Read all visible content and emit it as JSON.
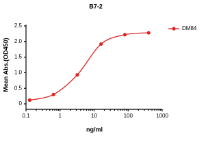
{
  "chart_data": {
    "type": "line",
    "title": "B7-2",
    "x_label": "ng/ml",
    "y_label": "Mean Abs.(OD450)",
    "x_scale": "log",
    "xlim": [
      0.1,
      1000
    ],
    "xticks": [
      0.1,
      1,
      10,
      100,
      1000
    ],
    "ylim": [
      0,
      2.5
    ],
    "yticks": [
      0,
      0.5,
      {
        "value": 1,
        "label": "1.0"
      },
      1.5,
      {
        "value": 2,
        "label": "2.0"
      },
      2.5
    ],
    "legend": "upper right",
    "series": [
      {
        "name": "DM84",
        "color": "#e02222",
        "x": [
          0.128,
          0.64,
          3.2,
          16,
          80,
          400
        ],
        "values": [
          0.12,
          0.3,
          0.93,
          1.92,
          2.22,
          2.28
        ]
      }
    ]
  }
}
